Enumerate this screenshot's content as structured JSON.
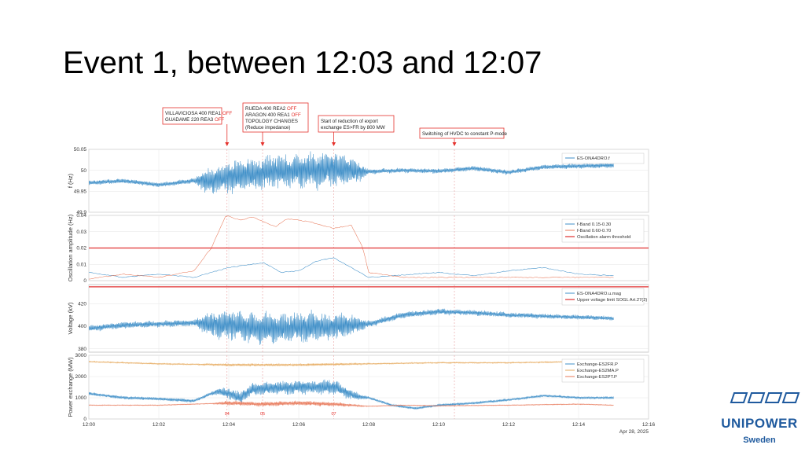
{
  "slide": {
    "title": "Event 1, between 12:03 and 12:07"
  },
  "logo": {
    "name": "UNIPOWER",
    "sub": "Sweden",
    "color": "#1f5a9e"
  },
  "callouts": [
    {
      "lines": [
        [
          "VILLAVICIOSA  400  REA1 ",
          "OFF"
        ],
        [
          "GUADAME  220  REA3 ",
          "OFF"
        ]
      ],
      "time": "12:03:57"
    },
    {
      "lines": [
        [
          "RUEDA  400  REA2 ",
          "OFF"
        ],
        [
          "ARAGON  400  REA1 ",
          "OFF"
        ],
        [
          "TOPOLOGY  CHANGES",
          ""
        ],
        [
          "(Reduce impedance)",
          ""
        ]
      ],
      "time": "12:04:58"
    },
    {
      "lines": [
        [
          "Start  of  reduction  of  export",
          ""
        ],
        [
          "exchange  ES>FR  by  800  MW",
          ""
        ]
      ],
      "time": "12:07:00"
    },
    {
      "lines": [
        [
          "Switching  of  HVDC  to  constant  P-mode",
          ""
        ]
      ],
      "time": "12:10:27"
    }
  ],
  "chart_data": {
    "type": "line",
    "time_axis": {
      "range": [
        "12:00",
        "12:16"
      ],
      "ticks": [
        "12:00",
        "12:02",
        "12:04",
        "12:06",
        "12:08",
        "12:10",
        "12:12",
        "12:14",
        "12:16"
      ],
      "date_label": "Apr 28, 2025"
    },
    "event_markers": [
      {
        "label": "04",
        "time": "12:03:57"
      },
      {
        "label": "05",
        "time": "12:04:58"
      },
      {
        "label": "07",
        "time": "12:07:00"
      }
    ],
    "panels": [
      {
        "id": "frequency",
        "ylabel": "f (Hz)",
        "ylim": [
          49.9,
          50.05
        ],
        "yticks": [
          "49.9",
          "49.95",
          "50",
          "50.05"
        ],
        "grid": true,
        "legend_position": "top-right",
        "series": [
          {
            "name": "ES-ONA4DRO.f",
            "color": "#3f8fc8",
            "points": [
              [
                "12:00",
                "49.97"
              ],
              [
                "12:01",
                "49.975"
              ],
              [
                "12:02",
                "49.965"
              ],
              [
                "12:03",
                "49.975"
              ],
              [
                "12:03:30",
                "49.975"
              ],
              [
                "12:04",
                "49.985"
              ],
              [
                "12:05",
                "49.995"
              ],
              [
                "12:06",
                "50.0"
              ],
              [
                "12:07",
                "50.003"
              ],
              [
                "12:08",
                "49.997"
              ],
              [
                "12:09",
                "50.0"
              ],
              [
                "12:10",
                "49.998"
              ],
              [
                "12:11",
                "50.005"
              ],
              [
                "12:12",
                "49.995"
              ],
              [
                "12:13",
                "50.008"
              ],
              [
                "12:14",
                "50.01"
              ],
              [
                "12:15",
                "50.012"
              ]
            ],
            "oscillation_amplitude": [
              [
                "12:00",
                "0.006"
              ],
              [
                "12:03",
                "0.006"
              ],
              [
                "12:03:20",
                "0.03"
              ],
              [
                "12:04",
                "0.04"
              ],
              [
                "12:07",
                "0.045"
              ],
              [
                "12:07:40",
                "0.03"
              ],
              [
                "12:08",
                "0.006"
              ],
              [
                "12:15",
                "0.006"
              ]
            ]
          }
        ]
      },
      {
        "id": "oscillation",
        "ylabel": "Oscillation amplitude (Hz)",
        "ylim": [
          0,
          0.04
        ],
        "yticks": [
          "0",
          "0.01",
          "0.02",
          "0.03",
          "0.04"
        ],
        "grid": true,
        "legend_position": "top-right",
        "series": [
          {
            "name": "f-Band 0.15-0.30",
            "color": "#3f8fc8",
            "points": [
              [
                "12:00",
                "0.005"
              ],
              [
                "12:01",
                "0.002"
              ],
              [
                "12:02",
                "0.004"
              ],
              [
                "12:03",
                "0.002"
              ],
              [
                "12:03:40",
                "0.006"
              ],
              [
                "12:04",
                "0.008"
              ],
              [
                "12:04:40",
                "0.01"
              ],
              [
                "12:05",
                "0.011"
              ],
              [
                "12:05:30",
                "0.005"
              ],
              [
                "12:06",
                "0.006"
              ],
              [
                "12:06:30",
                "0.012"
              ],
              [
                "12:07",
                "0.014"
              ],
              [
                "12:07:30",
                "0.008"
              ],
              [
                "12:08",
                "0.002"
              ],
              [
                "12:10",
                "0.005"
              ],
              [
                "12:11",
                "0.003"
              ],
              [
                "12:12",
                "0.006"
              ],
              [
                "12:13",
                "0.008"
              ],
              [
                "12:14",
                "0.004"
              ],
              [
                "12:15",
                "0.003"
              ]
            ]
          },
          {
            "name": "f-Band 0.60-0.70",
            "color": "#e8795a",
            "points": [
              [
                "12:00",
                "0.001"
              ],
              [
                "12:01",
                "0.004"
              ],
              [
                "12:02",
                "0.002"
              ],
              [
                "12:03",
                "0.006"
              ],
              [
                "12:03:30",
                "0.02"
              ],
              [
                "12:03:55",
                "0.04"
              ],
              [
                "12:04:20",
                "0.037"
              ],
              [
                "12:04:40",
                "0.039"
              ],
              [
                "12:05",
                "0.036"
              ],
              [
                "12:05:20",
                "0.033"
              ],
              [
                "12:05:40",
                "0.038"
              ],
              [
                "12:06:20",
                "0.036"
              ],
              [
                "12:07",
                "0.032"
              ],
              [
                "12:07:30",
                "0.034"
              ],
              [
                "12:07:50",
                "0.02"
              ],
              [
                "12:08",
                "0.005"
              ],
              [
                "12:09",
                "0.002"
              ],
              [
                "12:15",
                "0.002"
              ]
            ]
          },
          {
            "name": "Oscillation alarm threshold",
            "color": "#e03030",
            "points": [
              [
                "12:00",
                "0.02"
              ],
              [
                "12:16",
                "0.02"
              ]
            ]
          }
        ]
      },
      {
        "id": "voltage",
        "ylabel": "Voltage (kV)",
        "ylim": [
          377,
          437
        ],
        "yticks": [
          "380",
          "400",
          "420"
        ],
        "grid": true,
        "legend_position": "top-right",
        "series": [
          {
            "name": "ES-ONA4DRO.u.mag",
            "color": "#3f8fc8",
            "points": [
              [
                "12:00",
                "398"
              ],
              [
                "12:01",
                "401"
              ],
              [
                "12:02",
                "402"
              ],
              [
                "12:03",
                "403"
              ],
              [
                "12:03:30",
                "402"
              ],
              [
                "12:05",
                "398"
              ],
              [
                "12:07",
                "400"
              ],
              [
                "12:08",
                "402"
              ],
              [
                "12:09",
                "410"
              ],
              [
                "12:10",
                "413"
              ],
              [
                "12:11",
                "412"
              ],
              [
                "12:12",
                "410"
              ],
              [
                "12:13",
                "409"
              ],
              [
                "12:14",
                "408"
              ],
              [
                "12:15",
                "407"
              ]
            ],
            "oscillation_amplitude": [
              [
                "12:00",
                "3"
              ],
              [
                "12:03",
                "3"
              ],
              [
                "12:03:30",
                "12"
              ],
              [
                "12:04",
                "14"
              ],
              [
                "12:06",
                "14"
              ],
              [
                "12:07",
                "13"
              ],
              [
                "12:07:40",
                "8"
              ],
              [
                "12:08",
                "3"
              ],
              [
                "12:15",
                "2"
              ]
            ]
          },
          {
            "name": "Upper voltage limit SOGL Art.27(2)",
            "color": "#e03030",
            "points": [
              [
                "12:00",
                "435"
              ],
              [
                "12:16",
                "435"
              ]
            ]
          }
        ]
      },
      {
        "id": "exchange",
        "ylabel": "Power exchange (MW)",
        "ylim": [
          0,
          3000
        ],
        "yticks": [
          "0",
          "1000",
          "2000",
          "3000"
        ],
        "grid": true,
        "legend_position": "top-right",
        "series": [
          {
            "name": "Exchange-ES2FR.P",
            "color": "#3f8fc8",
            "points": [
              [
                "12:00",
                "1200"
              ],
              [
                "12:01",
                "1000"
              ],
              [
                "12:02",
                "950"
              ],
              [
                "12:03",
                "850"
              ],
              [
                "12:03:40",
                "1300"
              ],
              [
                "12:04",
                "1200"
              ],
              [
                "12:04:20",
                "1000"
              ],
              [
                "12:04:40",
                "1400"
              ],
              [
                "12:06",
                "1500"
              ],
              [
                "12:07",
                "1500"
              ],
              [
                "12:07:40",
                "1050"
              ],
              [
                "12:08",
                "1000"
              ],
              [
                "12:08:40",
                "650"
              ],
              [
                "12:09:20",
                "500"
              ],
              [
                "12:10",
                "650"
              ],
              [
                "12:11",
                "750"
              ],
              [
                "12:12",
                "900"
              ],
              [
                "12:13",
                "1100"
              ],
              [
                "12:14",
                "1000"
              ],
              [
                "12:15",
                "1000"
              ]
            ],
            "oscillation_amplitude": [
              [
                "12:00",
                "80"
              ],
              [
                "12:03:30",
                "80"
              ],
              [
                "12:04",
                "300"
              ],
              [
                "12:07",
                "350"
              ],
              [
                "12:07:40",
                "200"
              ],
              [
                "12:08",
                "60"
              ],
              [
                "12:15",
                "60"
              ]
            ]
          },
          {
            "name": "Exchange-ES2MA.P",
            "color": "#e6a95c",
            "points": [
              [
                "12:00",
                "2700"
              ],
              [
                "12:02",
                "2600"
              ],
              [
                "12:04",
                "2550"
              ],
              [
                "12:06",
                "2550"
              ],
              [
                "12:08",
                "2600"
              ],
              [
                "12:10",
                "2650"
              ],
              [
                "12:12",
                "2650"
              ],
              [
                "12:14",
                "2700"
              ],
              [
                "12:15",
                "2700"
              ]
            ],
            "oscillation_amplitude": [
              [
                "12:00",
                "30"
              ],
              [
                "12:03",
                "30"
              ],
              [
                "12:04",
                "60"
              ],
              [
                "12:07",
                "60"
              ],
              [
                "12:08",
                "30"
              ],
              [
                "12:15",
                "30"
              ]
            ]
          },
          {
            "name": "Exchange-ES2PT.P",
            "color": "#e8795a",
            "points": [
              [
                "12:00",
                "650"
              ],
              [
                "12:02",
                "650"
              ],
              [
                "12:03",
                "700"
              ],
              [
                "12:04",
                "750"
              ],
              [
                "12:05",
                "700"
              ],
              [
                "12:06",
                "750"
              ],
              [
                "12:07",
                "700"
              ],
              [
                "12:08",
                "600"
              ],
              [
                "12:09",
                "650"
              ],
              [
                "12:10",
                "620"
              ],
              [
                "12:12",
                "650"
              ],
              [
                "12:14",
                "700"
              ],
              [
                "12:15",
                "650"
              ]
            ],
            "oscillation_amplitude": [
              [
                "12:00",
                "20"
              ],
              [
                "12:03:30",
                "20"
              ],
              [
                "12:04",
                "120"
              ],
              [
                "12:07",
                "110"
              ],
              [
                "12:08",
                "20"
              ],
              [
                "12:15",
                "20"
              ]
            ]
          }
        ]
      }
    ]
  }
}
